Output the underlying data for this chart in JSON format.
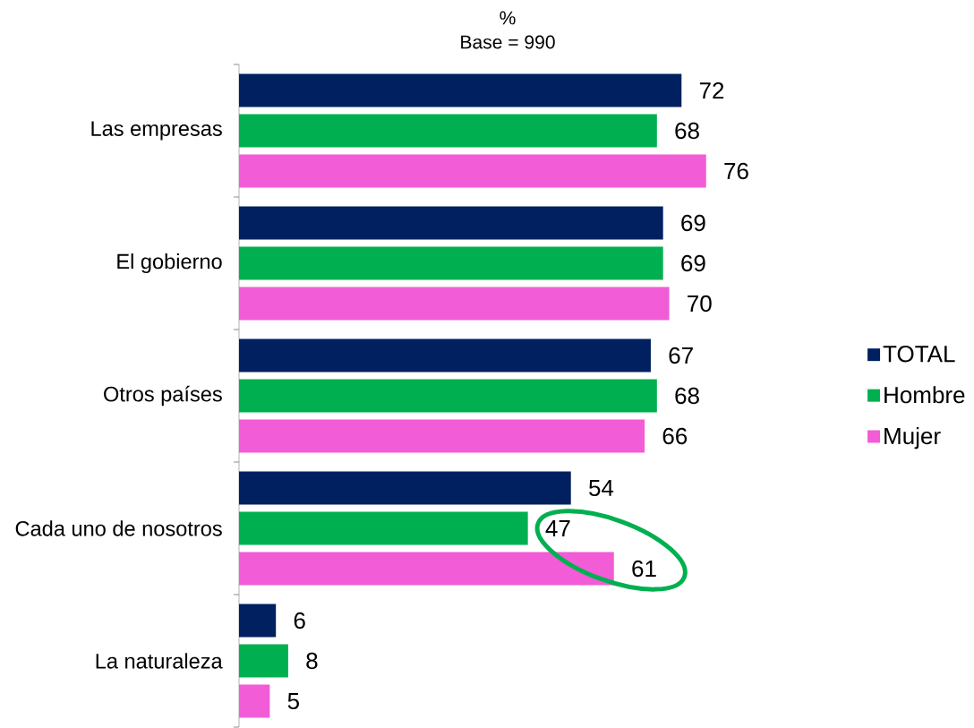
{
  "chart_data": {
    "type": "bar",
    "orientation": "horizontal",
    "subtitle": "%",
    "annotations": [
      "Base = 990"
    ],
    "categories": [
      "Las empresas",
      "El gobierno",
      "Otros países",
      "Cada uno de nosotros",
      "La naturaleza"
    ],
    "series": [
      {
        "name": "TOTAL",
        "color": "#002060",
        "values": [
          72,
          69,
          67,
          54,
          6
        ]
      },
      {
        "name": "Hombre",
        "color": "#00b050",
        "values": [
          68,
          69,
          68,
          47,
          8
        ]
      },
      {
        "name": "Mujer",
        "color": "#f25cd6",
        "values": [
          76,
          70,
          66,
          61,
          5
        ]
      }
    ],
    "data_labels": true,
    "legend": "right",
    "tick_labels": "y"
  }
}
